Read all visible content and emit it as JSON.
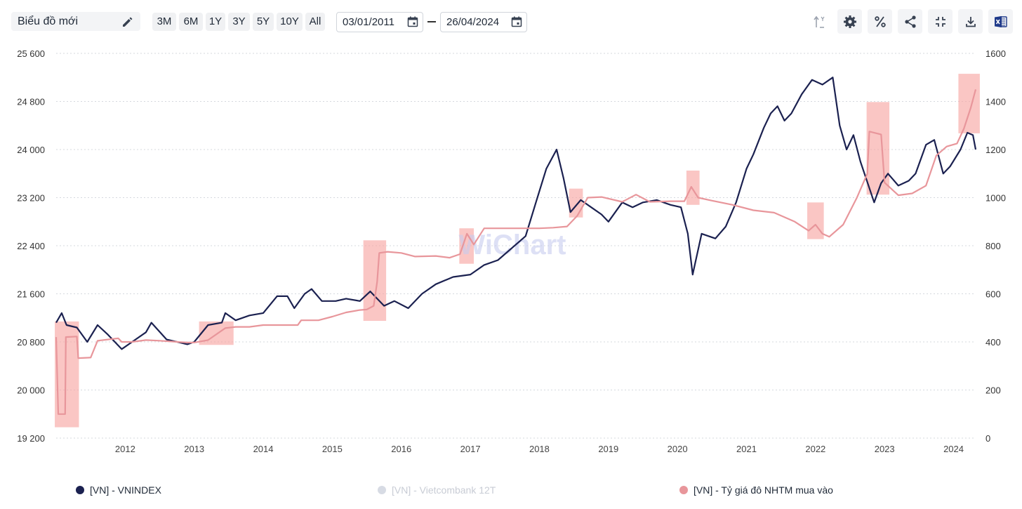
{
  "toolbar": {
    "chart_name": "Biểu đồ mới",
    "ranges": [
      "3M",
      "6M",
      "1Y",
      "3Y",
      "5Y",
      "10Y",
      "All"
    ],
    "date_from": "03/01/2011",
    "date_to": "26/04/2024",
    "icons": [
      "axis-toggle-icon",
      "gear-icon",
      "percent-icon",
      "share-icon",
      "collapse-icon",
      "download-icon",
      "excel-icon"
    ]
  },
  "watermark": "WiChart",
  "colors": {
    "vnindex": "#1b2150",
    "fx": "#e8969b",
    "vcb_disabled": "#d7dbe4",
    "highlight": "#f7a8a5"
  },
  "chart_data": {
    "type": "line",
    "x_ticks": [
      "2012",
      "2013",
      "2014",
      "2015",
      "2016",
      "2017",
      "2018",
      "2019",
      "2020",
      "2021",
      "2022",
      "2023",
      "2024"
    ],
    "x_range": [
      2011.0,
      2024.32
    ],
    "y_left": {
      "ticks": [
        "25 600",
        "24 800",
        "24 000",
        "23 200",
        "22 400",
        "21 600",
        "20 800",
        "20 000",
        "19 200"
      ],
      "range": [
        19200,
        25600
      ]
    },
    "y_right": {
      "ticks": [
        "1600",
        "1400",
        "1200",
        "1000",
        "800",
        "600",
        "400",
        "200",
        "0"
      ],
      "range": [
        0,
        1600
      ]
    },
    "grid": true,
    "legend_position": "bottom",
    "series": [
      {
        "name": "[VN] - VNINDEX",
        "axis": "right",
        "enabled": true,
        "points": [
          [
            2011.0,
            480
          ],
          [
            2011.08,
            520
          ],
          [
            2011.15,
            470
          ],
          [
            2011.3,
            460
          ],
          [
            2011.45,
            400
          ],
          [
            2011.6,
            470
          ],
          [
            2011.75,
            430
          ],
          [
            2011.95,
            370
          ],
          [
            2012.1,
            400
          ],
          [
            2012.3,
            440
          ],
          [
            2012.38,
            480
          ],
          [
            2012.6,
            410
          ],
          [
            2012.9,
            390
          ],
          [
            2013.0,
            400
          ],
          [
            2013.2,
            470
          ],
          [
            2013.4,
            480
          ],
          [
            2013.45,
            520
          ],
          [
            2013.6,
            490
          ],
          [
            2013.8,
            510
          ],
          [
            2014.0,
            520
          ],
          [
            2014.2,
            590
          ],
          [
            2014.35,
            590
          ],
          [
            2014.45,
            540
          ],
          [
            2014.6,
            600
          ],
          [
            2014.7,
            620
          ],
          [
            2014.85,
            570
          ],
          [
            2015.05,
            570
          ],
          [
            2015.2,
            580
          ],
          [
            2015.4,
            570
          ],
          [
            2015.55,
            610
          ],
          [
            2015.65,
            580
          ],
          [
            2015.75,
            550
          ],
          [
            2015.9,
            570
          ],
          [
            2016.1,
            540
          ],
          [
            2016.3,
            600
          ],
          [
            2016.5,
            640
          ],
          [
            2016.75,
            670
          ],
          [
            2017.0,
            680
          ],
          [
            2017.2,
            720
          ],
          [
            2017.4,
            740
          ],
          [
            2017.6,
            790
          ],
          [
            2017.8,
            840
          ],
          [
            2017.95,
            980
          ],
          [
            2018.1,
            1120
          ],
          [
            2018.25,
            1200
          ],
          [
            2018.35,
            1080
          ],
          [
            2018.45,
            940
          ],
          [
            2018.6,
            990
          ],
          [
            2018.75,
            960
          ],
          [
            2018.9,
            930
          ],
          [
            2019.0,
            900
          ],
          [
            2019.2,
            980
          ],
          [
            2019.35,
            960
          ],
          [
            2019.5,
            980
          ],
          [
            2019.7,
            990
          ],
          [
            2019.9,
            970
          ],
          [
            2020.05,
            960
          ],
          [
            2020.15,
            850
          ],
          [
            2020.22,
            680
          ],
          [
            2020.35,
            850
          ],
          [
            2020.55,
            830
          ],
          [
            2020.7,
            880
          ],
          [
            2020.85,
            980
          ],
          [
            2021.0,
            1120
          ],
          [
            2021.1,
            1180
          ],
          [
            2021.25,
            1290
          ],
          [
            2021.35,
            1350
          ],
          [
            2021.45,
            1380
          ],
          [
            2021.55,
            1320
          ],
          [
            2021.65,
            1350
          ],
          [
            2021.8,
            1430
          ],
          [
            2021.95,
            1490
          ],
          [
            2022.1,
            1470
          ],
          [
            2022.25,
            1500
          ],
          [
            2022.35,
            1300
          ],
          [
            2022.45,
            1200
          ],
          [
            2022.55,
            1260
          ],
          [
            2022.65,
            1150
          ],
          [
            2022.85,
            980
          ],
          [
            2022.95,
            1060
          ],
          [
            2023.05,
            1100
          ],
          [
            2023.2,
            1050
          ],
          [
            2023.35,
            1070
          ],
          [
            2023.45,
            1100
          ],
          [
            2023.6,
            1220
          ],
          [
            2023.72,
            1240
          ],
          [
            2023.85,
            1100
          ],
          [
            2023.95,
            1130
          ],
          [
            2024.1,
            1200
          ],
          [
            2024.2,
            1270
          ],
          [
            2024.28,
            1260
          ],
          [
            2024.32,
            1200
          ]
        ]
      },
      {
        "name": "[VN] - Vietcombank 12T",
        "axis": "left",
        "enabled": false,
        "points": []
      },
      {
        "name": "[VN] - Tỷ giá đô NHTM mua vào",
        "axis": "left",
        "enabled": true,
        "points": [
          [
            2011.0,
            20880
          ],
          [
            2011.03,
            19600
          ],
          [
            2011.13,
            19600
          ],
          [
            2011.14,
            20880
          ],
          [
            2011.3,
            20890
          ],
          [
            2011.32,
            20530
          ],
          [
            2011.5,
            20540
          ],
          [
            2011.6,
            20820
          ],
          [
            2011.9,
            20860
          ],
          [
            2011.95,
            20800
          ],
          [
            2012.1,
            20800
          ],
          [
            2012.3,
            20830
          ],
          [
            2012.5,
            20820
          ],
          [
            2012.9,
            20790
          ],
          [
            2013.0,
            20790
          ],
          [
            2013.2,
            20830
          ],
          [
            2013.45,
            21030
          ],
          [
            2013.6,
            21050
          ],
          [
            2013.8,
            21050
          ],
          [
            2014.0,
            21080
          ],
          [
            2014.2,
            21080
          ],
          [
            2014.5,
            21080
          ],
          [
            2014.55,
            21160
          ],
          [
            2014.8,
            21160
          ],
          [
            2015.0,
            21220
          ],
          [
            2015.2,
            21290
          ],
          [
            2015.4,
            21330
          ],
          [
            2015.5,
            21340
          ],
          [
            2015.6,
            21400
          ],
          [
            2015.65,
            21800
          ],
          [
            2015.68,
            22280
          ],
          [
            2015.8,
            22300
          ],
          [
            2016.0,
            22280
          ],
          [
            2016.2,
            22220
          ],
          [
            2016.5,
            22230
          ],
          [
            2016.7,
            22200
          ],
          [
            2016.85,
            22260
          ],
          [
            2016.95,
            22600
          ],
          [
            2017.05,
            22420
          ],
          [
            2017.2,
            22690
          ],
          [
            2017.4,
            22690
          ],
          [
            2017.6,
            22690
          ],
          [
            2018.0,
            22690
          ],
          [
            2018.2,
            22700
          ],
          [
            2018.4,
            22720
          ],
          [
            2018.55,
            22900
          ],
          [
            2018.7,
            23200
          ],
          [
            2018.9,
            23210
          ],
          [
            2019.2,
            23130
          ],
          [
            2019.4,
            23250
          ],
          [
            2019.6,
            23130
          ],
          [
            2019.9,
            23140
          ],
          [
            2020.1,
            23140
          ],
          [
            2020.2,
            23380
          ],
          [
            2020.3,
            23200
          ],
          [
            2020.5,
            23150
          ],
          [
            2020.8,
            23080
          ],
          [
            2021.1,
            22990
          ],
          [
            2021.4,
            22950
          ],
          [
            2021.7,
            22800
          ],
          [
            2021.9,
            22650
          ],
          [
            2022.0,
            22750
          ],
          [
            2022.1,
            22600
          ],
          [
            2022.2,
            22550
          ],
          [
            2022.4,
            22750
          ],
          [
            2022.6,
            23200
          ],
          [
            2022.75,
            23600
          ],
          [
            2022.78,
            24300
          ],
          [
            2022.95,
            24250
          ],
          [
            2023.0,
            23450
          ],
          [
            2023.2,
            23240
          ],
          [
            2023.4,
            23270
          ],
          [
            2023.6,
            23400
          ],
          [
            2023.75,
            23900
          ],
          [
            2023.9,
            24050
          ],
          [
            2024.05,
            24100
          ],
          [
            2024.15,
            24350
          ],
          [
            2024.25,
            24700
          ],
          [
            2024.32,
            25000
          ]
        ]
      }
    ],
    "highlights": [
      {
        "x_from": 2010.98,
        "x_to": 2011.33,
        "y_from": 19380,
        "y_to": 21140
      },
      {
        "x_from": 2013.07,
        "x_to": 2013.57,
        "y_from": 20750,
        "y_to": 21140
      },
      {
        "x_from": 2015.45,
        "x_to": 2015.78,
        "y_from": 21150,
        "y_to": 22490
      },
      {
        "x_from": 2016.84,
        "x_to": 2017.05,
        "y_from": 22100,
        "y_to": 22690
      },
      {
        "x_from": 2018.43,
        "x_to": 2018.63,
        "y_from": 22870,
        "y_to": 23350
      },
      {
        "x_from": 2020.13,
        "x_to": 2020.32,
        "y_from": 23080,
        "y_to": 23650
      },
      {
        "x_from": 2021.88,
        "x_to": 2022.12,
        "y_from": 22510,
        "y_to": 23120
      },
      {
        "x_from": 2022.74,
        "x_to": 2023.07,
        "y_from": 23250,
        "y_to": 24790
      },
      {
        "x_from": 2024.07,
        "x_to": 2024.38,
        "y_from": 24270,
        "y_to": 25260
      }
    ]
  }
}
